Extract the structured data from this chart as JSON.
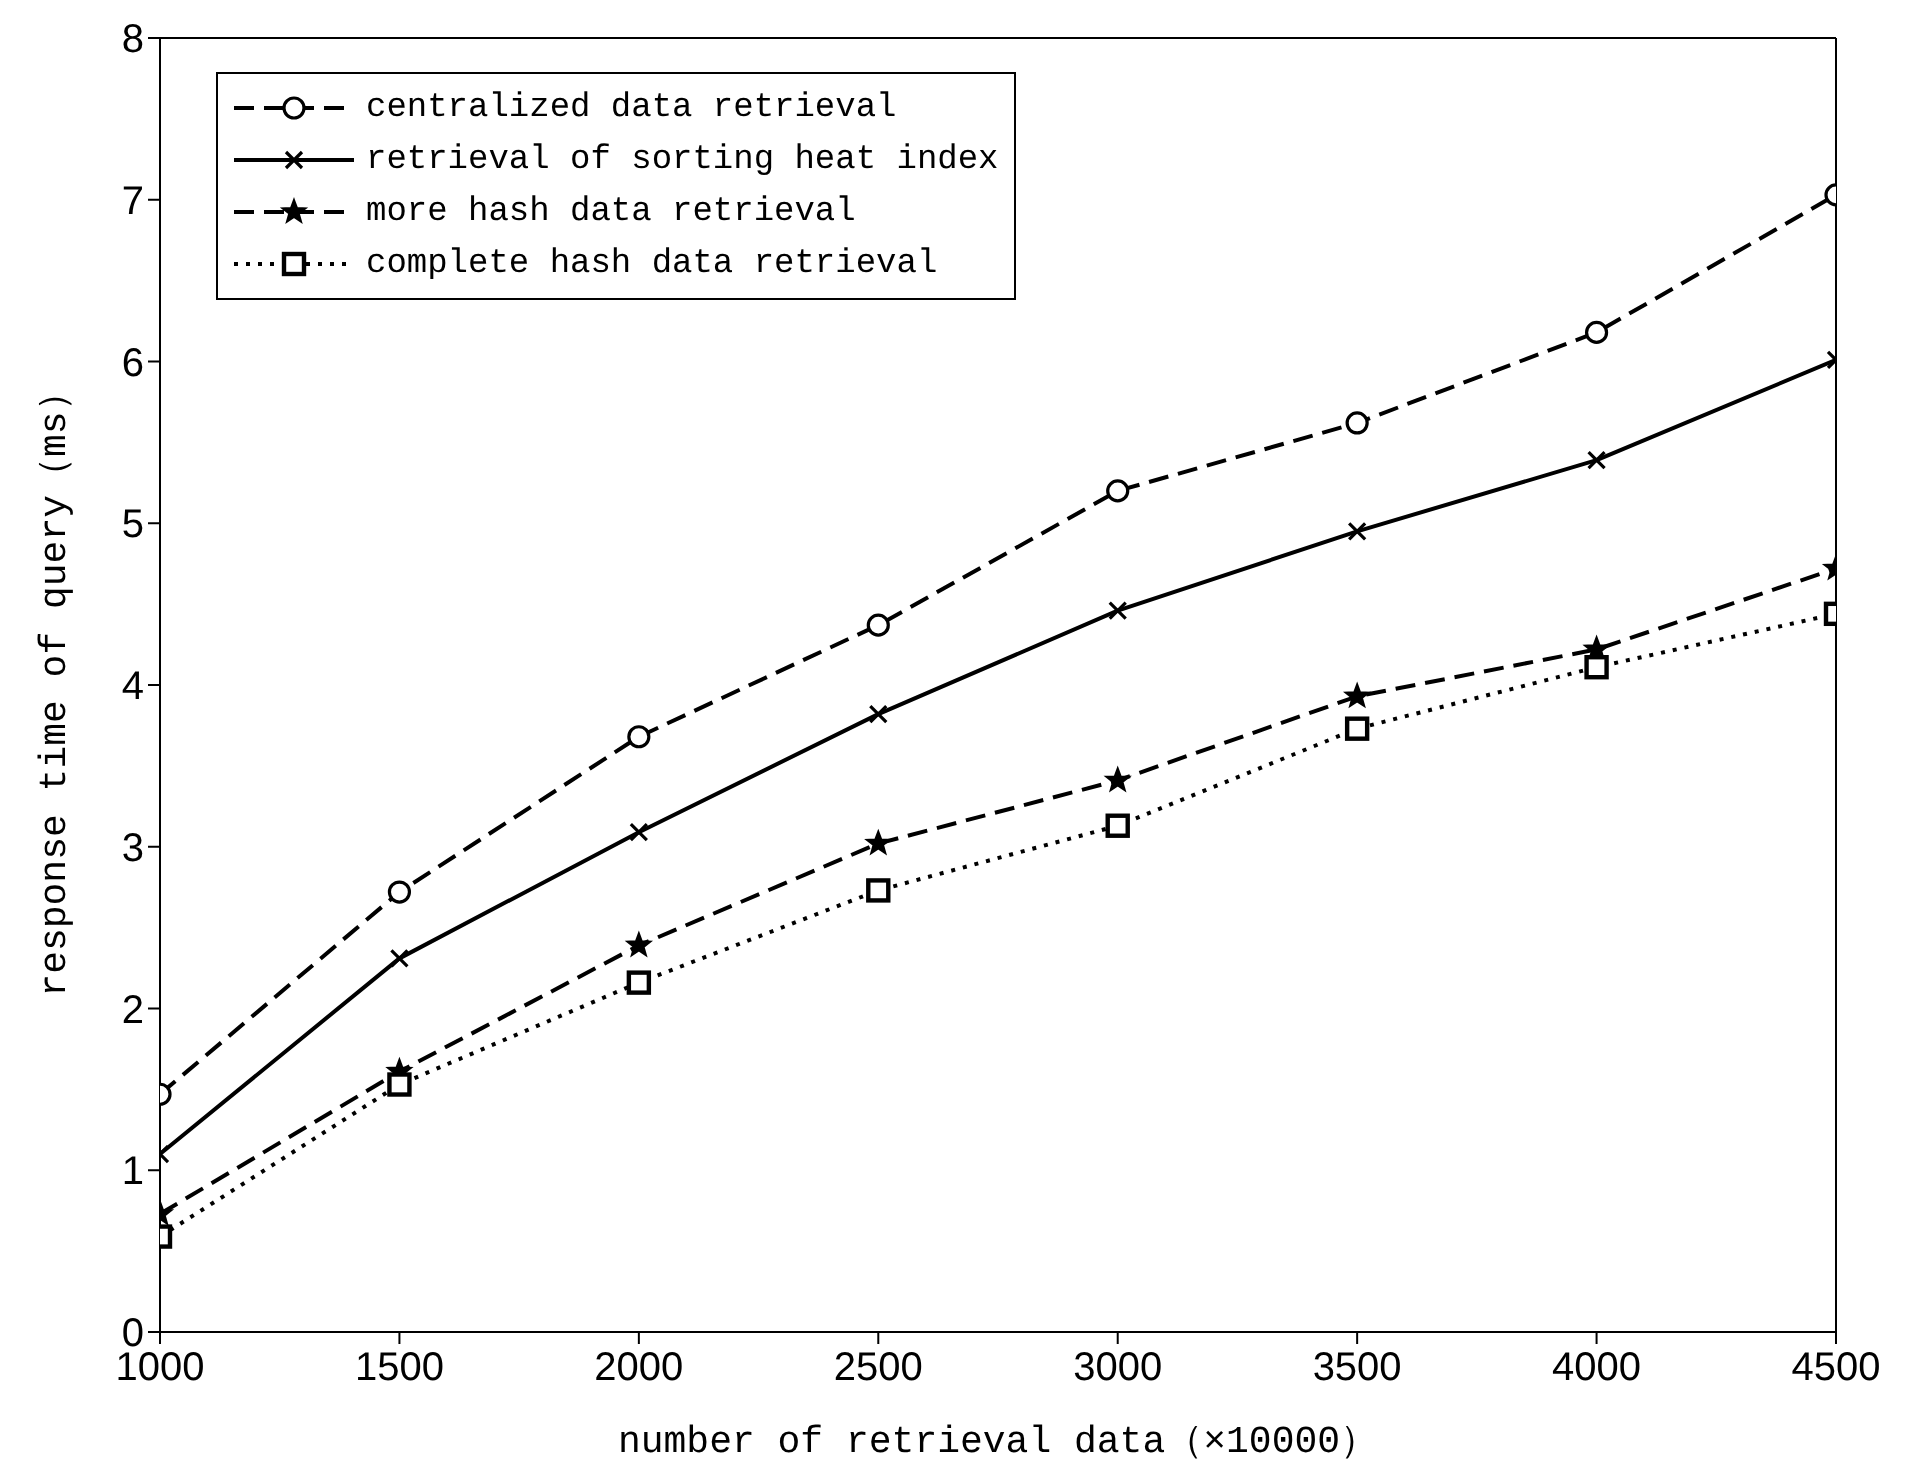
{
  "chart_data": {
    "type": "line",
    "xlabel": "number of retrieval data（×10000）",
    "ylabel": "response time of query（ms）",
    "x": [
      1000,
      1500,
      2000,
      2500,
      3000,
      3500,
      4000,
      4500
    ],
    "series": [
      {
        "name": "centralized data retrieval",
        "color": "#000000",
        "marker": "circle",
        "line_style": "dashed",
        "values": [
          1.47,
          2.72,
          3.68,
          4.37,
          5.2,
          5.62,
          6.18,
          7.03
        ]
      },
      {
        "name": "retrieval of sorting heat index",
        "color": "#000000",
        "marker": "cross",
        "line_style": "solid",
        "values": [
          1.1,
          2.31,
          3.09,
          3.82,
          4.46,
          4.95,
          5.39,
          6.01
        ]
      },
      {
        "name": "more hash data retrieval",
        "color": "#000000",
        "marker": "star",
        "line_style": "dashed",
        "values": [
          0.73,
          1.61,
          2.39,
          3.02,
          3.41,
          3.93,
          4.22,
          4.72
        ]
      },
      {
        "name": "complete hash data retrieval",
        "color": "#000000",
        "marker": "square",
        "line_style": "dotted",
        "values": [
          0.59,
          1.53,
          2.16,
          2.73,
          3.13,
          3.73,
          4.11,
          4.44
        ]
      }
    ],
    "xlim": [
      1000,
      4500
    ],
    "xticks": [
      1000,
      1500,
      2000,
      2500,
      3000,
      3500,
      4000,
      4500
    ],
    "ylim": [
      0,
      8
    ],
    "yticks": [
      0,
      1,
      2,
      3,
      4,
      5,
      6,
      7,
      8
    ],
    "grid": false,
    "legend": "top left"
  }
}
